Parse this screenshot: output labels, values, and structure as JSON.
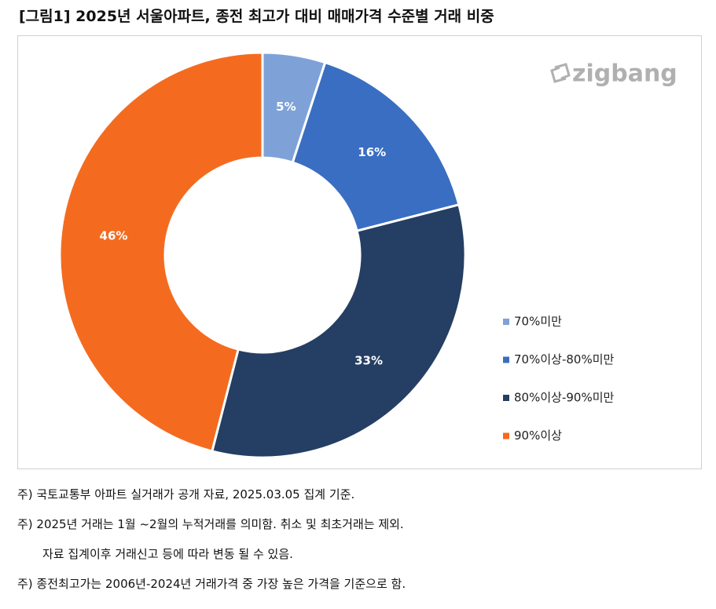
{
  "chart_data": {
    "type": "donut",
    "title": "[그림1] 2025년 서울아파트, 종전 최고가 대비 매매가격 수준별 거래 비중",
    "watermark": "zigbang",
    "categories": [
      "70%미만",
      "70%이상-80%미만",
      "80%이상-90%미만",
      "90%이상"
    ],
    "values": [
      5,
      16,
      33,
      46
    ],
    "value_labels": [
      "5%",
      "16%",
      "33%",
      "46%"
    ],
    "colors": [
      "#7ea2d8",
      "#3a6ec2",
      "#253e63",
      "#f46b1f"
    ],
    "legend": "right"
  },
  "notes": [
    "주) 국토교통부 아파트 실거래가 공개 자료, 2025.03.05 집계 기준.",
    "주) 2025년 거래는 1월 ~2월의 누적거래를 의미함. 취소 및 최초거래는 제외.",
    "자료 집계이후 거래신고 등에 따라 변동 될 수 있음.",
    "주) 종전최고가는 2006년-2024년 거래가격 중 가장 높은 가격을 기준으로 함."
  ]
}
